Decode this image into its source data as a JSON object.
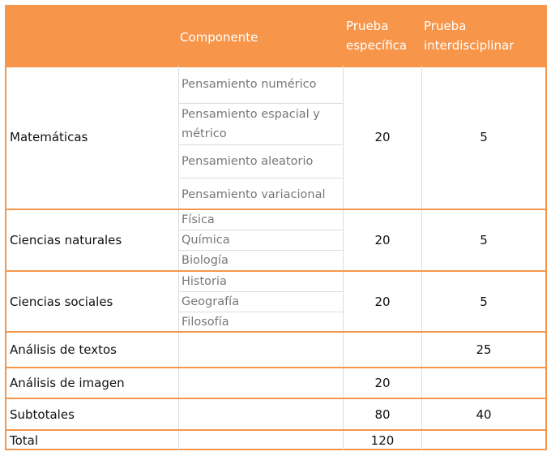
{
  "header": {
    "area": "",
    "componente": "Componente",
    "especifica": "Prueba específica",
    "interdisciplinar": "Prueba interdisciplinar"
  },
  "rows": [
    {
      "area": "Matemáticas",
      "componentes": [
        "Pensamiento numérico",
        "Pensamiento espacial y métrico",
        "Pensamiento aleatorio",
        "Pensamiento variacional"
      ],
      "especifica": "20",
      "interdisciplinar": "5"
    },
    {
      "area": "Ciencias naturales",
      "componentes": [
        "Física",
        "Química",
        "Biología"
      ],
      "especifica": "20",
      "interdisciplinar": "5"
    },
    {
      "area": "Ciencias sociales",
      "componentes": [
        "Historia",
        "Geografía",
        "Filosofía"
      ],
      "especifica": "20",
      "interdisciplinar": "5"
    },
    {
      "area": "Análisis de textos",
      "componentes": [],
      "especifica": "",
      "interdisciplinar": "25"
    },
    {
      "area": "Análisis de imagen",
      "componentes": [],
      "especifica": "20",
      "interdisciplinar": ""
    },
    {
      "area": "Subtotales",
      "componentes": [],
      "especifica": "80",
      "interdisciplinar": "40"
    },
    {
      "area": "Total",
      "componentes": [],
      "especifica": "120",
      "interdisciplinar": ""
    }
  ],
  "colors": {
    "accent": "#F7964A"
  }
}
